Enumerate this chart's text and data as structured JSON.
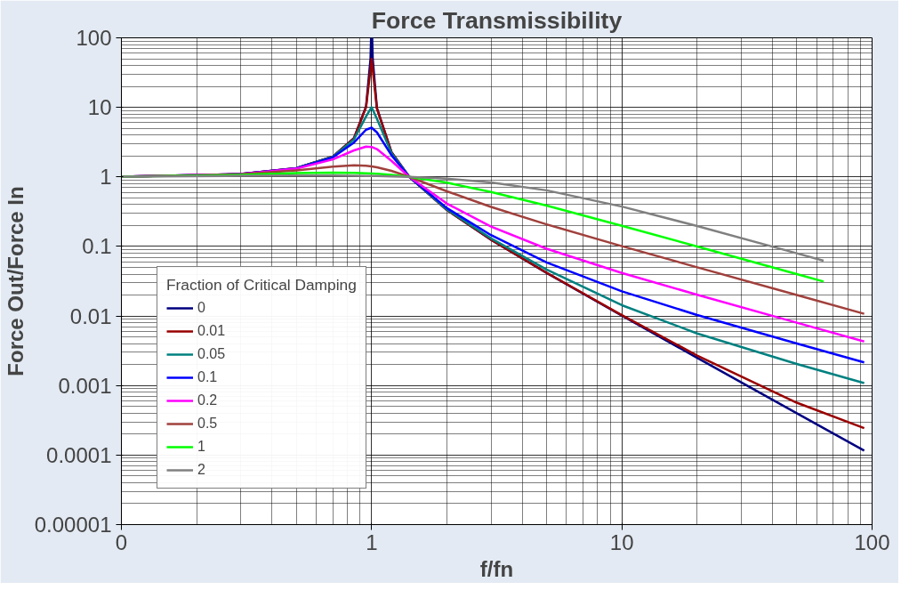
{
  "chart_data": {
    "type": "line",
    "title": "Force Transmissibility",
    "xlabel": "f/fn",
    "ylabel": "Force Out/Force In",
    "legend_title": "Fraction of Critical Damping",
    "log": "xy",
    "xlim": [
      0.1,
      100
    ],
    "ylim": [
      1e-05,
      100
    ],
    "xticks": [
      {
        "value": 0.1,
        "label": "0"
      },
      1,
      10,
      100
    ],
    "yticks": [
      {
        "value": 1e-05,
        "label": "0.00001"
      },
      0.0001,
      0.001,
      0.01,
      0.1,
      1,
      10,
      100
    ],
    "grid": true,
    "legend": "bottom left",
    "marker": "none",
    "line_style": "solid",
    "series": [
      {
        "name": "0",
        "color": "#000080",
        "x": [
          0.1,
          0.3,
          0.5,
          0.7,
          0.85,
          0.95,
          0.99,
          0.9949,
          1.005,
          1.01,
          1.05,
          1.2,
          1.414,
          2,
          3,
          5,
          10,
          20,
          50,
          93
        ],
        "values": [
          1.01,
          1.099,
          1.333,
          1.961,
          3.604,
          10.26,
          50.25,
          98.3,
          99.75,
          49.75,
          9.756,
          2.273,
          1.0,
          0.3333,
          0.125,
          0.04167,
          0.0101,
          0.002506,
          0.0004002,
          0.0001156
        ]
      },
      {
        "name": "0.01",
        "color": "#990000",
        "x": [
          0.1,
          0.3,
          0.5,
          0.7,
          0.85,
          0.95,
          0.99,
          1,
          1.01,
          1.05,
          1.2,
          1.414,
          2,
          3,
          5,
          10,
          20,
          50,
          93
        ],
        "values": [
          1.01,
          1.099,
          1.333,
          1.96,
          3.598,
          10.07,
          35.6,
          50.01,
          35.1,
          9.56,
          2.272,
          1.0,
          0.3336,
          0.1252,
          0.04187,
          0.0103,
          0.0027,
          0.000566,
          0.0002442
        ]
      },
      {
        "name": "0.05",
        "color": "#008080",
        "x": [
          0.5,
          0.7,
          0.85,
          0.95,
          1,
          1.05,
          1.2,
          1.414,
          2,
          3,
          5,
          10,
          20,
          50,
          93
        ],
        "values": [
          1.332,
          1.947,
          3.459,
          7.38,
          10.05,
          6.85,
          2.208,
          1.0,
          0.3392,
          0.1304,
          0.04658,
          0.01428,
          0.005604,
          0.00204,
          0.001082
        ]
      },
      {
        "name": "0.1",
        "color": "#0000ff",
        "x": [
          0.1,
          0.3,
          0.5,
          0.7,
          0.85,
          0.95,
          1,
          1.05,
          1.2,
          1.414,
          2,
          3,
          5,
          10,
          20,
          50,
          93
        ],
        "values": [
          1.01,
          1.0985,
          1.328,
          1.909,
          3.117,
          4.77,
          5.099,
          4.373,
          2.052,
          1.0,
          0.3559,
          0.1454,
          0.05888,
          0.02258,
          0.01033,
          0.004022,
          0.002154
        ]
      },
      {
        "name": "0.2",
        "color": "#ff00ff",
        "x": [
          0.1,
          0.3,
          0.5,
          0.7,
          0.85,
          0.95,
          1,
          1.05,
          1.2,
          1.414,
          2,
          3,
          5,
          10,
          20,
          50,
          93
        ],
        "values": [
          1.01,
          1.097,
          1.314,
          1.785,
          2.407,
          2.727,
          2.693,
          2.509,
          1.703,
          1.0,
          0.4125,
          0.1931,
          0.0928,
          0.0416,
          0.0202,
          0.008013,
          0.004303
        ]
      },
      {
        "name": "0.5",
        "color": "#a0403c",
        "x": [
          0.1,
          0.3,
          0.5,
          0.7,
          0.85,
          0.95,
          1,
          1.05,
          1.2,
          1.414,
          2,
          3,
          5,
          10,
          20,
          50,
          93
        ],
        "values": [
          1.01,
          1.09,
          1.24,
          1.409,
          1.468,
          1.444,
          1.414,
          1.374,
          1.222,
          1.0,
          0.62,
          0.37,
          0.208,
          0.101,
          0.0501,
          0.02001,
          0.01075
        ]
      },
      {
        "name": "1",
        "color": "#00ff00",
        "x": [
          0.1,
          0.3,
          0.5,
          0.7,
          0.85,
          0.95,
          1,
          1.05,
          1.2,
          1.414,
          2,
          3,
          5,
          10,
          20,
          50,
          64
        ],
        "values": [
          1.01,
          1.07,
          1.131,
          1.155,
          1.145,
          1.129,
          1.118,
          1.106,
          1.066,
          1.0,
          0.8246,
          0.608,
          0.3865,
          0.1983,
          0.0998,
          0.04,
          0.03124
        ]
      },
      {
        "name": "2",
        "color": "#808080",
        "x": [
          0.1,
          0.3,
          0.5,
          0.7,
          0.85,
          0.95,
          1,
          1.05,
          1.2,
          1.414,
          2,
          3,
          5,
          10,
          20,
          50,
          64
        ],
        "values": [
          1.009,
          1.037,
          1.047,
          1.045,
          1.039,
          1.034,
          1.031,
          1.028,
          1.017,
          1.0,
          0.9436,
          0.835,
          0.641,
          0.3747,
          0.1966,
          0.0798,
          0.0624
        ]
      }
    ]
  }
}
